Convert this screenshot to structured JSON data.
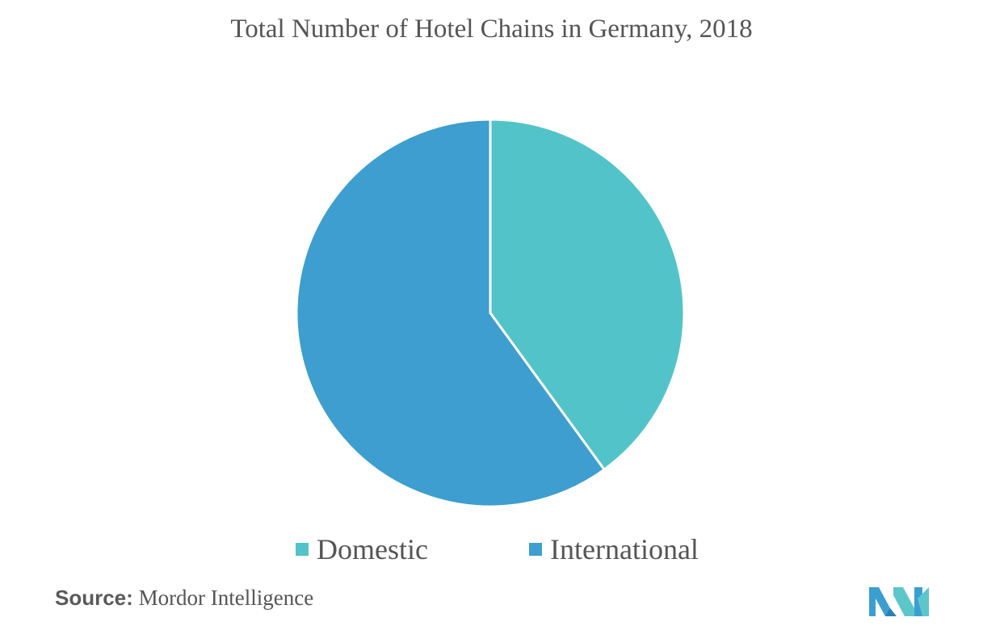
{
  "chart_data": {
    "type": "pie",
    "title": "Total Number of Hotel Chains in Germany, 2018",
    "categories": [
      "Domestic",
      "International"
    ],
    "values": [
      40,
      60
    ],
    "colors": [
      "#52c4c9",
      "#3d9ecf"
    ],
    "legend_position": "bottom"
  },
  "source": {
    "prefix": "Source:",
    "text": " Mordor Intelligence"
  },
  "logo": {
    "icon": "mordor-intelligence-logo",
    "colors": [
      "#3b9fd1",
      "#5cc6cb",
      "#2a7fb0"
    ]
  }
}
